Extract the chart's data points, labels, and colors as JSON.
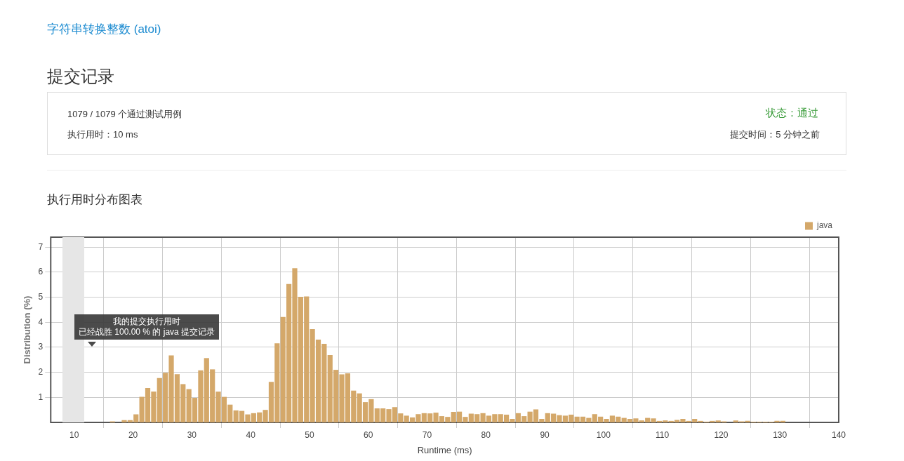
{
  "chart_data": {
    "type": "histogram",
    "title": "执行用时分布图表",
    "xlabel": "Runtime (ms)",
    "ylabel": "Distribution (%)",
    "annotations": [
      "字符串转换整数 (atoi)",
      "提交记录",
      "1079 / 1079 个通过测试用例",
      "执行用时：10 ms",
      "状态：通过",
      "提交时间：5 分钟之前",
      "我的提交执行用时",
      "已经战胜 100.00 % 的 java 提交记录"
    ],
    "bins": [
      16,
      17,
      18,
      19,
      20,
      21,
      22,
      23,
      24,
      25,
      26,
      27,
      28,
      29,
      30,
      31,
      32,
      33,
      34,
      35,
      36,
      37,
      38,
      39,
      40,
      41,
      42,
      43,
      44,
      45,
      46,
      47,
      48,
      49,
      50,
      51,
      52,
      53,
      54,
      55,
      56,
      57,
      58,
      59,
      60,
      61,
      62,
      63,
      64,
      65,
      66,
      67,
      68,
      69,
      70,
      71,
      72,
      73,
      74,
      75,
      76,
      77,
      78,
      79,
      80,
      81,
      82,
      83,
      84,
      85,
      86,
      87,
      88,
      89,
      90,
      91,
      92,
      93,
      94,
      95,
      96,
      97,
      98,
      99,
      100,
      101,
      102,
      103,
      104,
      105,
      106,
      107,
      108,
      109,
      110,
      111,
      112,
      113,
      114,
      115,
      116,
      117,
      118,
      119,
      120,
      121,
      122,
      123,
      124,
      125,
      126,
      127,
      128,
      129,
      130,
      131
    ],
    "series": [
      {
        "name": "java",
        "color": "#d4a86a",
        "values": [
          0.04,
          0,
          0.09,
          0.09,
          0.32,
          1.02,
          1.37,
          1.23,
          1.77,
          1.98,
          2.68,
          1.93,
          1.53,
          1.33,
          0.98,
          2.08,
          2.57,
          2.12,
          1.23,
          1.02,
          0.71,
          0.48,
          0.46,
          0.32,
          0.37,
          0.4,
          0.5,
          1.62,
          3.16,
          4.21,
          5.53,
          6.16,
          5.02,
          5.03,
          3.73,
          3.31,
          3.14,
          2.69,
          2.1,
          1.92,
          1.96,
          1.27,
          1.16,
          0.81,
          0.93,
          0.56,
          0.56,
          0.53,
          0.61,
          0.36,
          0.27,
          0.2,
          0.33,
          0.37,
          0.36,
          0.39,
          0.25,
          0.22,
          0.42,
          0.43,
          0.22,
          0.35,
          0.33,
          0.37,
          0.27,
          0.33,
          0.33,
          0.31,
          0.14,
          0.37,
          0.25,
          0.43,
          0.52,
          0.14,
          0.37,
          0.35,
          0.29,
          0.27,
          0.31,
          0.23,
          0.23,
          0.18,
          0.33,
          0.23,
          0.14,
          0.27,
          0.23,
          0.18,
          0.14,
          0.16,
          0.08,
          0.18,
          0.16,
          0.06,
          0.08,
          0.06,
          0.1,
          0.14,
          0.06,
          0.14,
          0.06,
          0.03,
          0.06,
          0.08,
          0.04,
          0,
          0.08,
          0.04,
          0.06,
          0.03,
          0.03,
          0.03,
          0.03,
          0.06,
          0.06
        ]
      }
    ],
    "bands": [
      {
        "axis": "x",
        "from": 8,
        "to": 11.7,
        "color": "#e6e6e6"
      }
    ],
    "xlim": [
      6,
      140
    ],
    "xticks": [
      10,
      20,
      30,
      40,
      50,
      60,
      70,
      80,
      90,
      100,
      110,
      120,
      130,
      140
    ],
    "ylim": [
      0,
      7.4
    ],
    "yticks": [
      1,
      2,
      3,
      4,
      5,
      6,
      7
    ],
    "grid": true,
    "legend": "top right"
  }
}
